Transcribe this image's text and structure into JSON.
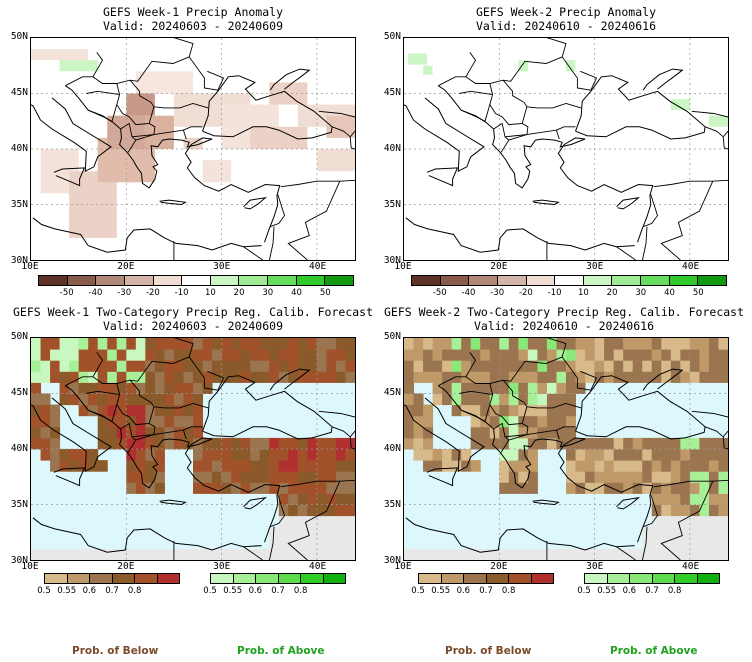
{
  "panels": [
    {
      "title": "GEFS Week-1 Precip Anomaly",
      "valid": "Valid: 20240603 - 20240609"
    },
    {
      "title": "GEFS Week-2 Precip Anomaly",
      "valid": "Valid: 20240610 - 20240616"
    },
    {
      "title": "GEFS Week-1 Two-Category Precip Reg. Calib. Forecast",
      "valid": "Valid: 20240603 - 20240609"
    },
    {
      "title": "GEFS Week-2 Two-Category Precip Reg. Calib. Forecast",
      "valid": "Valid: 20240610 - 20240616"
    }
  ],
  "lat_ticks": [
    "50N",
    "45N",
    "40N",
    "35N",
    "30N"
  ],
  "lon_ticks": [
    "10E",
    "20E",
    "30E",
    "40E"
  ],
  "anomaly_scale": {
    "labels": [
      "-50",
      "-40",
      "-30",
      "-20",
      "-10",
      "10",
      "20",
      "30",
      "40",
      "50"
    ],
    "colors": [
      "#5e3226",
      "#8a5a4a",
      "#b08878",
      "#d4b4a6",
      "#f0ddd3",
      "#ffffff",
      "#ccf5c4",
      "#a0ec96",
      "#66dd5c",
      "#30c82a",
      "#109a10"
    ]
  },
  "below_scale": {
    "labels": [
      "0.5",
      "0.55",
      "0.6",
      "0.7",
      "0.8"
    ],
    "colors": [
      "#d8b98a",
      "#bf9a68",
      "#9a7550",
      "#8a5a2a",
      "#a2522a",
      "#b03030"
    ]
  },
  "above_scale": {
    "labels": [
      "0.5",
      "0.55",
      "0.6",
      "0.7",
      "0.8"
    ],
    "colors": [
      "#c8f8c0",
      "#a8f098",
      "#88e878",
      "#5cdc4c",
      "#30cc28",
      "#10b010"
    ]
  },
  "legend": {
    "below": "Prob. of Below",
    "above": "Prob. of Above"
  },
  "colors": {
    "below_text": "#7a4a2a",
    "above_text": "#20a020",
    "sea": "#dcf8fc",
    "land_outside": "#e8e8e8"
  }
}
